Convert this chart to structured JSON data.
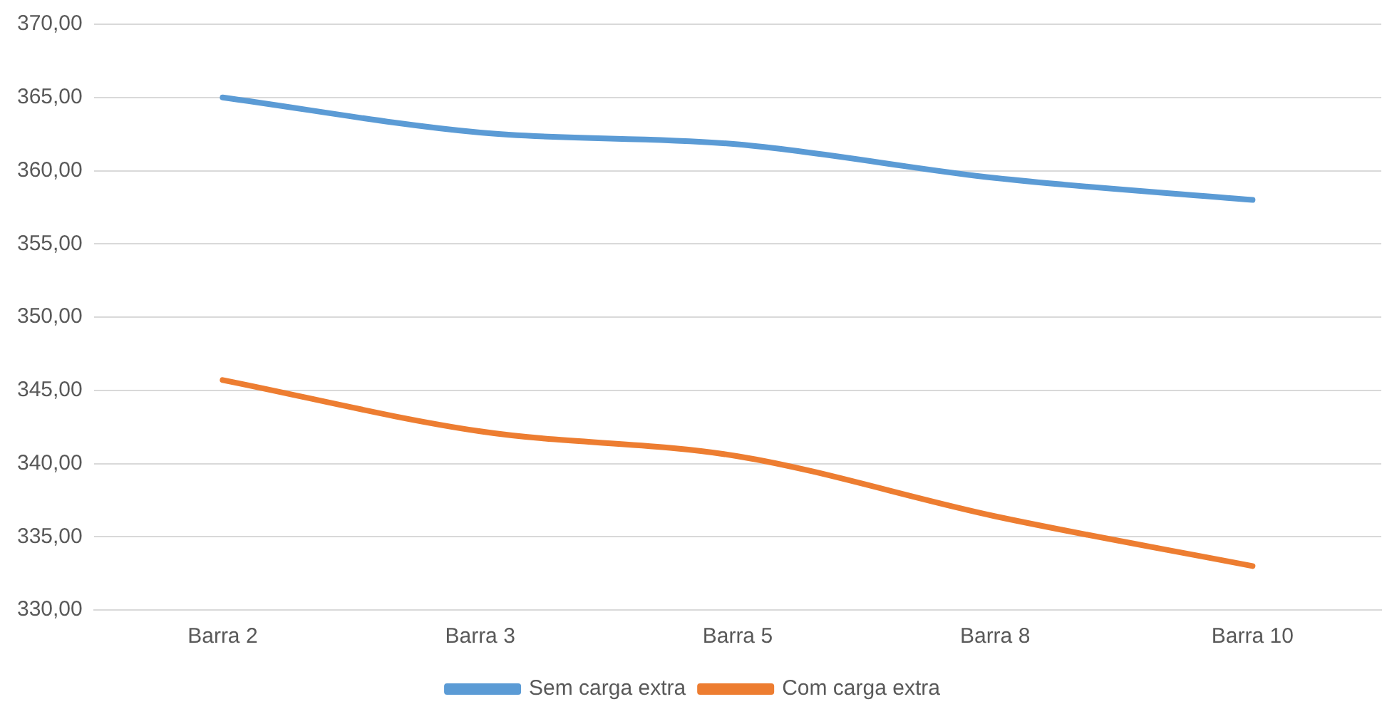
{
  "chart_data": {
    "type": "line",
    "categories": [
      "Barra 2",
      "Barra 3",
      "Barra 5",
      "Barra 8",
      "Barra 10"
    ],
    "series": [
      {
        "name": "Sem carga extra",
        "color": "#5b9bd5",
        "values": [
          365.0,
          362.6,
          361.8,
          359.5,
          358.0
        ]
      },
      {
        "name": "Com carga extra",
        "color": "#ed7d31",
        "values": [
          345.7,
          342.2,
          340.5,
          336.4,
          333.0
        ]
      }
    ],
    "ylim": [
      330,
      370
    ],
    "yticks": [
      {
        "value": 330,
        "label": "330,00"
      },
      {
        "value": 335,
        "label": "335,00"
      },
      {
        "value": 340,
        "label": "340,00"
      },
      {
        "value": 345,
        "label": "345,00"
      },
      {
        "value": 350,
        "label": "350,00"
      },
      {
        "value": 355,
        "label": "355,00"
      },
      {
        "value": 360,
        "label": "360,00"
      },
      {
        "value": 365,
        "label": "365,00"
      },
      {
        "value": 370,
        "label": "370,00"
      }
    ],
    "grid": "y",
    "legend": "bottom",
    "marker": "none",
    "line_style": "solid"
  }
}
